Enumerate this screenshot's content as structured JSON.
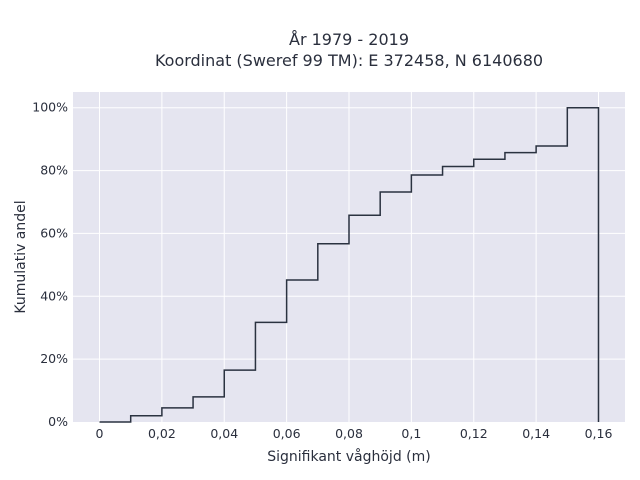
{
  "chart_data": {
    "type": "line",
    "step": "hv",
    "title_line1": "År 1979 - 2019",
    "title_line2": "Koordinat (Sweref 99 TM): E 372458, N 6140680",
    "xlabel": "Signifikant våghöjd (m)",
    "ylabel": "Kumulativ andel",
    "xlim": [
      -0.0085,
      0.1685
    ],
    "ylim": [
      0,
      1.05
    ],
    "x_ticks": [
      {
        "value": 0,
        "label": "0"
      },
      {
        "value": 0.02,
        "label": "0,02"
      },
      {
        "value": 0.04,
        "label": "0,04"
      },
      {
        "value": 0.06,
        "label": "0,06"
      },
      {
        "value": 0.08,
        "label": "0,08"
      },
      {
        "value": 0.1,
        "label": "0,1"
      },
      {
        "value": 0.12,
        "label": "0,12"
      },
      {
        "value": 0.14,
        "label": "0,14"
      },
      {
        "value": 0.16,
        "label": "0,16"
      }
    ],
    "y_ticks": [
      {
        "value": 0,
        "label": "0%"
      },
      {
        "value": 0.2,
        "label": "20%"
      },
      {
        "value": 0.4,
        "label": "40%"
      },
      {
        "value": 0.6,
        "label": "60%"
      },
      {
        "value": 0.8,
        "label": "80%"
      },
      {
        "value": 1.0,
        "label": "100%"
      }
    ],
    "grid": true,
    "x": [
      0,
      0.01,
      0.02,
      0.03,
      0.04,
      0.05,
      0.06,
      0.07,
      0.08,
      0.09,
      0.1,
      0.11,
      0.12,
      0.13,
      0.14,
      0.15,
      0.16
    ],
    "y": [
      0.0,
      0.02,
      0.045,
      0.08,
      0.165,
      0.317,
      0.452,
      0.567,
      0.658,
      0.732,
      0.786,
      0.813,
      0.836,
      0.857,
      0.878,
      1.0,
      0.0
    ],
    "colors": {
      "plot_bg": "#e5e5f0",
      "grid": "#ffffff",
      "line": "#2a3240",
      "text": "#2a2f3d"
    }
  }
}
